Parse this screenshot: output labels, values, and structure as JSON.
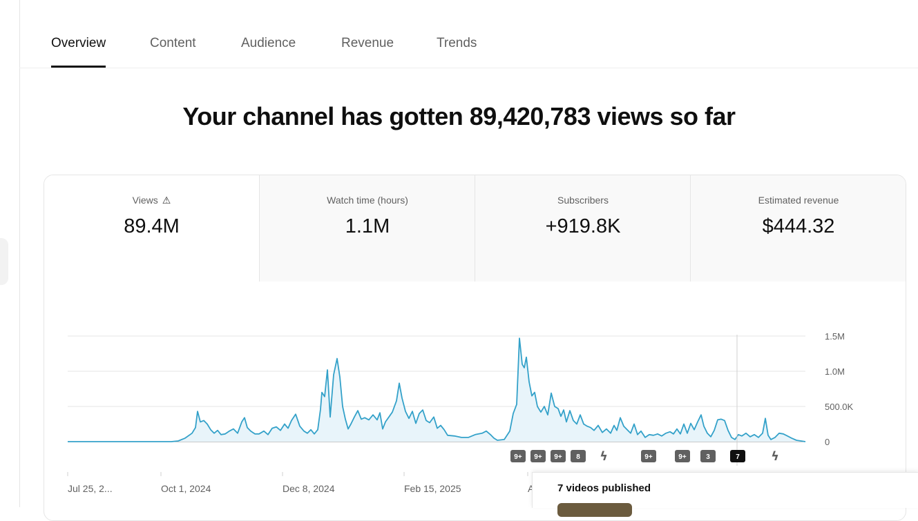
{
  "tabs": [
    {
      "label": "Overview",
      "active": true
    },
    {
      "label": "Content",
      "active": false
    },
    {
      "label": "Audience",
      "active": false
    },
    {
      "label": "Revenue",
      "active": false
    },
    {
      "label": "Trends",
      "active": false
    }
  ],
  "headline": "Your channel has gotten 89,420,783 views so far",
  "metrics": [
    {
      "label": "Views",
      "value": "89.4M",
      "icon": "warning-icon",
      "active": true
    },
    {
      "label": "Watch time (hours)",
      "value": "1.1M",
      "active": false
    },
    {
      "label": "Subscribers",
      "value": "+919.8K",
      "active": false
    },
    {
      "label": "Estimated revenue",
      "value": "$444.32",
      "active": false
    }
  ],
  "chart_data": {
    "type": "area",
    "ylim": [
      0,
      1500000
    ],
    "y_ticks": [
      {
        "label": "1.5M",
        "value": 1500000
      },
      {
        "label": "1.0M",
        "value": 1000000
      },
      {
        "label": "500.0K",
        "value": 500000
      },
      {
        "label": "0",
        "value": 0
      }
    ],
    "x_ticks": [
      "Jul 25, 2...",
      "Oct 1, 2024",
      "Dec 8, 2024",
      "Feb 15, 2025",
      "A"
    ],
    "color": "#33a1c9",
    "grid": true,
    "points": [
      [
        0,
        0
      ],
      [
        50,
        0
      ],
      [
        100,
        0
      ],
      [
        150,
        0
      ],
      [
        160,
        10000
      ],
      [
        170,
        50000
      ],
      [
        180,
        120000
      ],
      [
        185,
        200000
      ],
      [
        188,
        430000
      ],
      [
        192,
        280000
      ],
      [
        197,
        300000
      ],
      [
        202,
        250000
      ],
      [
        207,
        170000
      ],
      [
        212,
        120000
      ],
      [
        217,
        160000
      ],
      [
        222,
        100000
      ],
      [
        228,
        110000
      ],
      [
        234,
        150000
      ],
      [
        240,
        180000
      ],
      [
        246,
        120000
      ],
      [
        252,
        280000
      ],
      [
        256,
        340000
      ],
      [
        260,
        200000
      ],
      [
        265,
        150000
      ],
      [
        271,
        110000
      ],
      [
        277,
        110000
      ],
      [
        284,
        150000
      ],
      [
        290,
        100000
      ],
      [
        296,
        190000
      ],
      [
        302,
        210000
      ],
      [
        308,
        160000
      ],
      [
        314,
        250000
      ],
      [
        319,
        190000
      ],
      [
        324,
        300000
      ],
      [
        330,
        390000
      ],
      [
        336,
        220000
      ],
      [
        342,
        150000
      ],
      [
        347,
        120000
      ],
      [
        352,
        170000
      ],
      [
        357,
        110000
      ],
      [
        362,
        170000
      ],
      [
        366,
        460000
      ],
      [
        368,
        700000
      ],
      [
        372,
        640000
      ],
      [
        376,
        1020000
      ],
      [
        380,
        350000
      ],
      [
        385,
        950000
      ],
      [
        390,
        1180000
      ],
      [
        394,
        920000
      ],
      [
        398,
        500000
      ],
      [
        402,
        320000
      ],
      [
        406,
        180000
      ],
      [
        410,
        250000
      ],
      [
        415,
        350000
      ],
      [
        420,
        440000
      ],
      [
        425,
        320000
      ],
      [
        430,
        340000
      ],
      [
        436,
        310000
      ],
      [
        442,
        380000
      ],
      [
        448,
        310000
      ],
      [
        452,
        410000
      ],
      [
        456,
        180000
      ],
      [
        460,
        280000
      ],
      [
        465,
        350000
      ],
      [
        470,
        420000
      ],
      [
        476,
        580000
      ],
      [
        480,
        830000
      ],
      [
        484,
        620000
      ],
      [
        489,
        430000
      ],
      [
        494,
        330000
      ],
      [
        499,
        430000
      ],
      [
        504,
        260000
      ],
      [
        509,
        400000
      ],
      [
        514,
        450000
      ],
      [
        519,
        300000
      ],
      [
        524,
        270000
      ],
      [
        530,
        350000
      ],
      [
        535,
        190000
      ],
      [
        540,
        230000
      ],
      [
        545,
        170000
      ],
      [
        550,
        90000
      ],
      [
        560,
        80000
      ],
      [
        570,
        60000
      ],
      [
        580,
        60000
      ],
      [
        590,
        100000
      ],
      [
        600,
        120000
      ],
      [
        606,
        150000
      ],
      [
        612,
        100000
      ],
      [
        617,
        50000
      ],
      [
        622,
        20000
      ],
      [
        632,
        30000
      ],
      [
        640,
        150000
      ],
      [
        645,
        400000
      ],
      [
        650,
        530000
      ],
      [
        654,
        1470000
      ],
      [
        658,
        1100000
      ],
      [
        661,
        1050000
      ],
      [
        664,
        1200000
      ],
      [
        668,
        850000
      ],
      [
        672,
        650000
      ],
      [
        676,
        700000
      ],
      [
        680,
        500000
      ],
      [
        685,
        420000
      ],
      [
        690,
        500000
      ],
      [
        695,
        380000
      ],
      [
        700,
        690000
      ],
      [
        705,
        500000
      ],
      [
        710,
        470000
      ],
      [
        714,
        360000
      ],
      [
        718,
        450000
      ],
      [
        722,
        280000
      ],
      [
        727,
        440000
      ],
      [
        732,
        300000
      ],
      [
        737,
        250000
      ],
      [
        742,
        380000
      ],
      [
        747,
        250000
      ],
      [
        752,
        220000
      ],
      [
        757,
        200000
      ],
      [
        762,
        160000
      ],
      [
        768,
        230000
      ],
      [
        774,
        130000
      ],
      [
        780,
        180000
      ],
      [
        786,
        120000
      ],
      [
        791,
        230000
      ],
      [
        795,
        160000
      ],
      [
        800,
        340000
      ],
      [
        805,
        220000
      ],
      [
        810,
        170000
      ],
      [
        815,
        120000
      ],
      [
        820,
        250000
      ],
      [
        825,
        100000
      ],
      [
        830,
        150000
      ],
      [
        836,
        60000
      ],
      [
        842,
        100000
      ],
      [
        848,
        90000
      ],
      [
        854,
        110000
      ],
      [
        860,
        80000
      ],
      [
        866,
        120000
      ],
      [
        872,
        140000
      ],
      [
        877,
        110000
      ],
      [
        882,
        180000
      ],
      [
        887,
        110000
      ],
      [
        892,
        250000
      ],
      [
        897,
        120000
      ],
      [
        902,
        260000
      ],
      [
        907,
        170000
      ],
      [
        912,
        280000
      ],
      [
        917,
        380000
      ],
      [
        921,
        220000
      ],
      [
        926,
        120000
      ],
      [
        931,
        70000
      ],
      [
        936,
        160000
      ],
      [
        941,
        310000
      ],
      [
        946,
        320000
      ],
      [
        951,
        300000
      ],
      [
        956,
        160000
      ],
      [
        961,
        60000
      ],
      [
        966,
        30000
      ],
      [
        971,
        100000
      ],
      [
        976,
        80000
      ],
      [
        982,
        120000
      ],
      [
        988,
        70000
      ],
      [
        994,
        100000
      ],
      [
        1000,
        60000
      ],
      [
        1006,
        120000
      ],
      [
        1010,
        330000
      ],
      [
        1014,
        90000
      ],
      [
        1018,
        30000
      ],
      [
        1024,
        60000
      ],
      [
        1030,
        120000
      ],
      [
        1036,
        110000
      ],
      [
        1042,
        80000
      ],
      [
        1048,
        50000
      ],
      [
        1055,
        20000
      ],
      [
        1068,
        0
      ]
    ],
    "hover_index": 213,
    "markers": [
      {
        "text": "9+",
        "style": "gray"
      },
      {
        "text": "9+",
        "style": "gray"
      },
      {
        "text": "9+",
        "style": "gray"
      },
      {
        "text": "8",
        "style": "gray"
      },
      {
        "text": "",
        "style": "shorts"
      },
      {
        "text": "9+",
        "style": "gray"
      },
      {
        "text": "9+",
        "style": "gray"
      },
      {
        "text": "3",
        "style": "gray"
      },
      {
        "text": "7",
        "style": "black"
      },
      {
        "text": "",
        "style": "shorts"
      }
    ]
  },
  "popup": {
    "title": "7 videos published"
  }
}
